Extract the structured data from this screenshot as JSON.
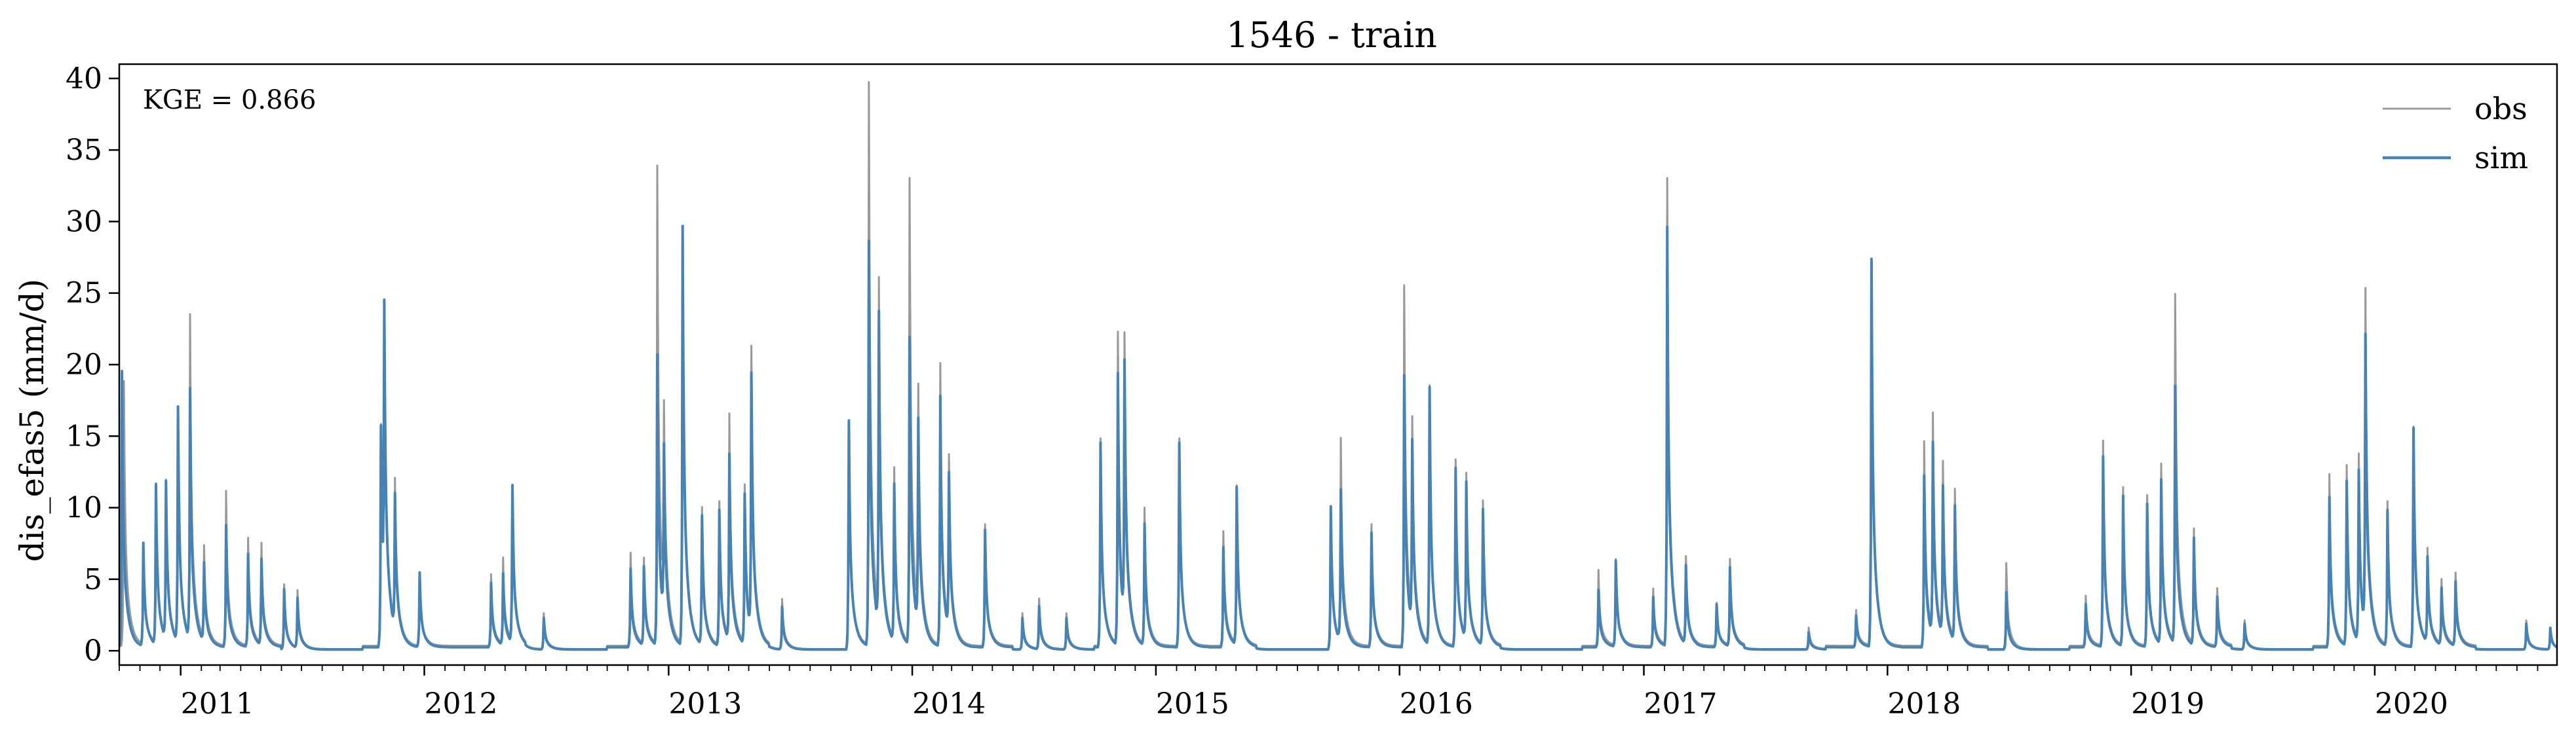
{
  "chart_data": {
    "type": "line",
    "title": "1546 - train",
    "xlabel": "",
    "ylabel": "dis_efas5 (mm/d)",
    "annotation": "KGE = 0.866",
    "xlim": [
      "2010-10-01",
      "2020-09-30"
    ],
    "ylim": [
      -1,
      41
    ],
    "x_ticks": [
      "2011",
      "2012",
      "2013",
      "2014",
      "2015",
      "2016",
      "2017",
      "2018",
      "2019",
      "2020"
    ],
    "y_ticks": [
      "0",
      "5",
      "10",
      "15",
      "20",
      "25",
      "30",
      "35",
      "40"
    ],
    "grid": false,
    "legend_position": "top-right",
    "series": [
      {
        "name": "obs",
        "color": "#999999",
        "peaks": [
          [
            "2010-10-08",
            18.5
          ],
          [
            "2010-11-06",
            7.0
          ],
          [
            "2010-11-25",
            11.0
          ],
          [
            "2010-12-10",
            11.0
          ],
          [
            "2010-12-28",
            16.0
          ],
          [
            "2011-01-15",
            22.6
          ],
          [
            "2011-02-05",
            6.5
          ],
          [
            "2011-03-10",
            10.8
          ],
          [
            "2011-04-12",
            7.5
          ],
          [
            "2011-05-02",
            7.0
          ],
          [
            "2011-06-05",
            4.5
          ],
          [
            "2011-06-25",
            4.0
          ],
          [
            "2011-10-28",
            15.5
          ],
          [
            "2011-11-02",
            19.5
          ],
          [
            "2011-11-18",
            10.5
          ],
          [
            "2011-12-25",
            5.0
          ],
          [
            "2012-04-10",
            5.0
          ],
          [
            "2012-04-28",
            6.0
          ],
          [
            "2012-05-12",
            10.8
          ],
          [
            "2012-06-28",
            2.5
          ],
          [
            "2012-11-05",
            6.5
          ],
          [
            "2012-11-25",
            6.0
          ],
          [
            "2012-12-15",
            33.4
          ],
          [
            "2012-12-25",
            13.5
          ],
          [
            "2013-01-22",
            28.0
          ],
          [
            "2013-02-20",
            9.5
          ],
          [
            "2013-03-18",
            10.0
          ],
          [
            "2013-04-02",
            15.7
          ],
          [
            "2013-04-25",
            11.0
          ],
          [
            "2013-05-05",
            19.7
          ],
          [
            "2013-06-20",
            3.5
          ],
          [
            "2013-09-28",
            16.0
          ],
          [
            "2013-10-28",
            39.3
          ],
          [
            "2013-11-12",
            23.7
          ],
          [
            "2013-12-05",
            12.0
          ],
          [
            "2013-12-28",
            32.5
          ],
          [
            "2014-01-10",
            16.0
          ],
          [
            "2014-02-12",
            19.7
          ],
          [
            "2014-02-25",
            12.0
          ],
          [
            "2014-04-20",
            8.5
          ],
          [
            "2014-06-15",
            2.5
          ],
          [
            "2014-07-10",
            3.5
          ],
          [
            "2014-08-20",
            2.5
          ],
          [
            "2014-10-10",
            14.5
          ],
          [
            "2014-11-05",
            21.8
          ],
          [
            "2014-11-15",
            19.5
          ],
          [
            "2014-12-15",
            9.5
          ],
          [
            "2015-02-05",
            14.5
          ],
          [
            "2015-04-12",
            8.0
          ],
          [
            "2015-05-02",
            11.0
          ],
          [
            "2015-09-20",
            10.0
          ],
          [
            "2015-10-05",
            14.0
          ],
          [
            "2015-11-20",
            8.5
          ],
          [
            "2016-01-08",
            25.2
          ],
          [
            "2016-01-20",
            14.0
          ],
          [
            "2016-02-15",
            18.0
          ],
          [
            "2016-03-25",
            13.0
          ],
          [
            "2016-04-10",
            11.5
          ],
          [
            "2016-05-05",
            10.0
          ],
          [
            "2016-10-25",
            5.3
          ],
          [
            "2016-11-20",
            6.0
          ],
          [
            "2017-01-15",
            4.0
          ],
          [
            "2017-02-05",
            32.6
          ],
          [
            "2017-03-05",
            6.0
          ],
          [
            "2017-04-20",
            3.0
          ],
          [
            "2017-05-10",
            6.0
          ],
          [
            "2017-09-05",
            1.5
          ],
          [
            "2017-11-15",
            2.5
          ],
          [
            "2017-12-08",
            27.0
          ],
          [
            "2018-02-25",
            14.3
          ],
          [
            "2018-03-10",
            15.3
          ],
          [
            "2018-03-25",
            12.0
          ],
          [
            "2018-04-12",
            10.5
          ],
          [
            "2018-06-28",
            6.0
          ],
          [
            "2018-10-25",
            3.5
          ],
          [
            "2018-11-20",
            14.3
          ],
          [
            "2018-12-20",
            11.0
          ],
          [
            "2019-01-25",
            10.5
          ],
          [
            "2019-02-15",
            12.5
          ],
          [
            "2019-03-08",
            24.3
          ],
          [
            "2019-04-05",
            8.0
          ],
          [
            "2019-05-10",
            4.0
          ],
          [
            "2019-06-20",
            2.0
          ],
          [
            "2019-10-25",
            12.0
          ],
          [
            "2019-11-20",
            12.5
          ],
          [
            "2019-12-08",
            13.0
          ],
          [
            "2019-12-18",
            23.5
          ],
          [
            "2020-01-20",
            10.0
          ],
          [
            "2020-02-28",
            15.3
          ],
          [
            "2020-03-20",
            6.5
          ],
          [
            "2020-04-10",
            4.5
          ],
          [
            "2020-05-01",
            5.0
          ],
          [
            "2020-08-15",
            2.0
          ],
          [
            "2020-09-20",
            1.5
          ]
        ]
      },
      {
        "name": "sim",
        "color": "#4682b4",
        "peaks": [
          [
            "2010-10-05",
            19.3
          ],
          [
            "2010-11-06",
            7.2
          ],
          [
            "2010-11-25",
            11.2
          ],
          [
            "2010-12-10",
            11.0
          ],
          [
            "2010-12-28",
            16.4
          ],
          [
            "2011-01-15",
            17.5
          ],
          [
            "2011-02-05",
            5.5
          ],
          [
            "2011-03-10",
            8.5
          ],
          [
            "2011-04-12",
            6.5
          ],
          [
            "2011-05-02",
            6.0
          ],
          [
            "2011-06-05",
            4.2
          ],
          [
            "2011-06-25",
            3.5
          ],
          [
            "2011-10-28",
            15.5
          ],
          [
            "2011-11-02",
            20.5
          ],
          [
            "2011-11-18",
            9.5
          ],
          [
            "2011-12-25",
            5.2
          ],
          [
            "2012-04-10",
            4.5
          ],
          [
            "2012-04-28",
            5.0
          ],
          [
            "2012-05-12",
            11.0
          ],
          [
            "2012-06-28",
            2.2
          ],
          [
            "2012-11-05",
            5.5
          ],
          [
            "2012-11-25",
            5.5
          ],
          [
            "2012-12-15",
            20.3
          ],
          [
            "2012-12-25",
            12.0
          ],
          [
            "2013-01-22",
            29.3
          ],
          [
            "2013-02-20",
            9.0
          ],
          [
            "2013-03-18",
            9.5
          ],
          [
            "2013-04-02",
            13.0
          ],
          [
            "2013-04-25",
            10.5
          ],
          [
            "2013-05-05",
            18.0
          ],
          [
            "2013-06-20",
            3.0
          ],
          [
            "2013-09-28",
            16.0
          ],
          [
            "2013-10-28",
            28.3
          ],
          [
            "2013-11-12",
            22.0
          ],
          [
            "2013-12-05",
            11.0
          ],
          [
            "2013-12-28",
            21.5
          ],
          [
            "2014-01-10",
            14.5
          ],
          [
            "2014-02-12",
            17.5
          ],
          [
            "2014-02-25",
            11.0
          ],
          [
            "2014-04-20",
            8.2
          ],
          [
            "2014-06-15",
            2.2
          ],
          [
            "2014-07-10",
            3.0
          ],
          [
            "2014-08-20",
            2.2
          ],
          [
            "2014-10-10",
            14.3
          ],
          [
            "2014-11-05",
            19.0
          ],
          [
            "2014-11-15",
            18.0
          ],
          [
            "2014-12-15",
            8.5
          ],
          [
            "2015-02-05",
            14.3
          ],
          [
            "2015-04-12",
            7.0
          ],
          [
            "2015-05-02",
            11.0
          ],
          [
            "2015-09-20",
            10.0
          ],
          [
            "2015-10-05",
            10.5
          ],
          [
            "2015-11-20",
            8.0
          ],
          [
            "2016-01-08",
            19.0
          ],
          [
            "2016-01-20",
            13.0
          ],
          [
            "2016-02-15",
            18.0
          ],
          [
            "2016-03-25",
            12.5
          ],
          [
            "2016-04-10",
            11.0
          ],
          [
            "2016-05-05",
            9.5
          ],
          [
            "2016-10-25",
            4.0
          ],
          [
            "2016-11-20",
            6.0
          ],
          [
            "2017-01-15",
            3.5
          ],
          [
            "2017-02-05",
            29.3
          ],
          [
            "2017-03-05",
            5.5
          ],
          [
            "2017-04-20",
            3.0
          ],
          [
            "2017-05-10",
            5.5
          ],
          [
            "2017-09-05",
            1.2
          ],
          [
            "2017-11-15",
            2.2
          ],
          [
            "2017-12-08",
            27.1
          ],
          [
            "2018-02-25",
            12.0
          ],
          [
            "2018-03-10",
            13.5
          ],
          [
            "2018-03-25",
            10.5
          ],
          [
            "2018-04-12",
            9.5
          ],
          [
            "2018-06-28",
            4.0
          ],
          [
            "2018-10-25",
            3.0
          ],
          [
            "2018-11-20",
            13.3
          ],
          [
            "2018-12-20",
            10.5
          ],
          [
            "2019-01-25",
            10.0
          ],
          [
            "2019-02-15",
            11.5
          ],
          [
            "2019-03-08",
            18.0
          ],
          [
            "2019-04-05",
            7.5
          ],
          [
            "2019-05-10",
            3.5
          ],
          [
            "2019-06-20",
            1.8
          ],
          [
            "2019-10-25",
            10.5
          ],
          [
            "2019-11-20",
            11.5
          ],
          [
            "2019-12-08",
            12.0
          ],
          [
            "2019-12-18",
            20.5
          ],
          [
            "2020-01-20",
            9.5
          ],
          [
            "2020-02-28",
            15.3
          ],
          [
            "2020-03-20",
            6.0
          ],
          [
            "2020-04-10",
            4.0
          ],
          [
            "2020-05-01",
            4.5
          ],
          [
            "2020-08-15",
            1.8
          ],
          [
            "2020-09-20",
            1.5
          ]
        ]
      }
    ]
  }
}
